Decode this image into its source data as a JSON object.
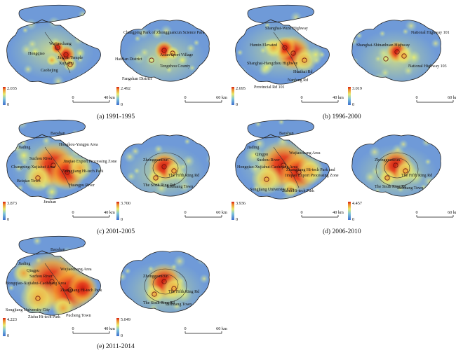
{
  "colors": {
    "low": "#5b8fd8",
    "mid": "#e6e96a",
    "high": "#e02a1a",
    "outline": "#222222"
  },
  "panels": [
    {
      "id": "a",
      "caption": "(a) 1991-1995",
      "sh_max": "2.035",
      "bj_max": "2.492",
      "sh_scale": "40 km",
      "bj_scale": "60 km",
      "legend_zero": "0",
      "sh_labels": [
        "Wujiaochang",
        "Hongqiao",
        "Jing'an Temple",
        "Xujiahui",
        "Caohejing"
      ],
      "bj_labels": [
        "Changping Park of Zhongguancun Science Park",
        "Haidian District",
        "Asian Sport Village",
        "Tongzhou County",
        "Fangshan District"
      ]
    },
    {
      "id": "b",
      "caption": "(b) 1996-2000",
      "sh_max": "2.695",
      "bj_max": "3.019",
      "sh_scale": "40 km",
      "bj_scale": "60 km",
      "legend_zero": "0",
      "sh_labels": [
        "Shanghai-Wuxi Highway",
        "Humin Elevated",
        "Shanghai-Hangzhou Highway",
        "Huaihai Rd",
        "Nanfeng Rd",
        "Provincial Rd 101"
      ],
      "bj_labels": [
        "Shanghai-Shinanhuan Highway",
        "National Highway 101",
        "National Highway 103"
      ]
    },
    {
      "id": "c",
      "caption": "(c) 2001-2005",
      "sh_max": "3.873",
      "bj_max": "3.700",
      "sh_scale": "40 km",
      "bj_scale": "60 km",
      "legend_zero": "0",
      "sh_labels": [
        "Baoshan",
        "Jiading",
        "Hongkou-Yangpu Area",
        "Suzhou River",
        "Jinqiao Export Processing Zone",
        "Changning-Xujiahui Area",
        "Zhangjiang Hi-tech Park",
        "Beiqiao Town",
        "Huangpu River",
        "Jinshan"
      ],
      "bj_labels": [
        "Zhongguancun",
        "The Fifth Ring Rd",
        "The Sixth Ring Rd",
        "Lishuang Town"
      ]
    },
    {
      "id": "d",
      "caption": "(d) 2006-2010",
      "sh_max": "3.936",
      "bj_max": "4.457",
      "sh_scale": "40 km",
      "bj_scale": "60 km",
      "legend_zero": "0",
      "sh_labels": [
        "Baoshan",
        "Jiading",
        "Qingpu",
        "Wujiaochang Area",
        "Suzhou River",
        "Hongqiao-Xujiahui-Caohejing Area",
        "Zhangjiang Hi-tech Park and",
        "Jinqiao Export Processing Zone",
        "Songjiang University City",
        "Zizhu Hi-tech Park"
      ],
      "bj_labels": [
        "Zhongguancun",
        "The Fifth Ring Rd",
        "The Sixth Ring Rd",
        "Lishuang Town"
      ]
    },
    {
      "id": "e",
      "caption": "(e) 2011-2014",
      "sh_max": "4.223",
      "bj_max": "5.049",
      "sh_scale": "40 km",
      "bj_scale": "60 km",
      "legend_zero": "0",
      "sh_labels": [
        "Baoshan",
        "Jiading",
        "Qingpu",
        "Wujiaochang Area",
        "Suzhou River",
        "Hongqiao-Xujiahui-Caohejing Area",
        "Zhangjiang Hi-tech Park",
        "Songjiang University City",
        "Zizhu Hi-tech Park",
        "Pucheng Town"
      ],
      "bj_labels": [
        "Zhongguancun",
        "The Fifth Ring Rd",
        "The Sixth Ring Rd",
        "Lishuang Town"
      ]
    }
  ]
}
